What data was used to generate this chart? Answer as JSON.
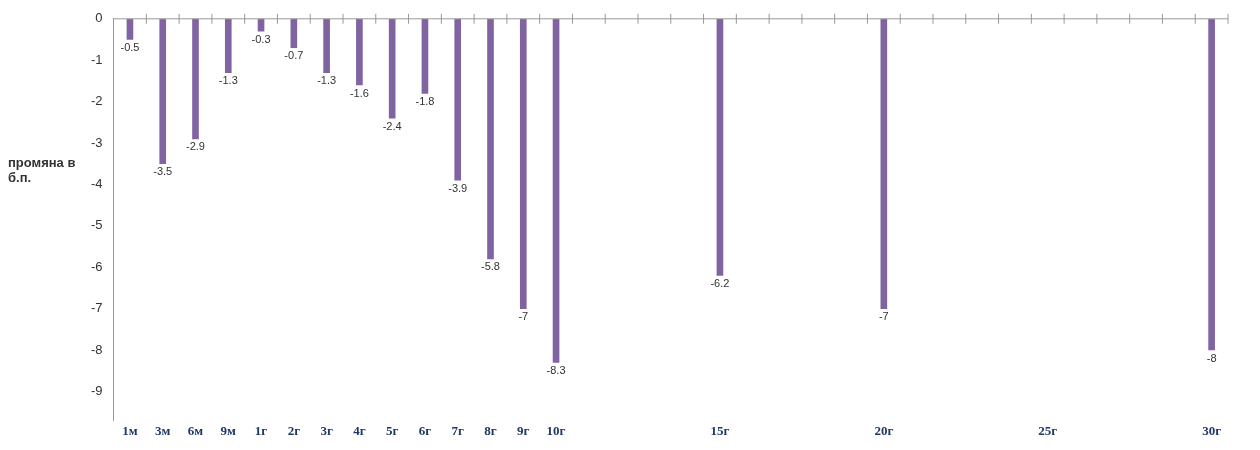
{
  "chart_data": {
    "type": "bar",
    "ylabel": "промяна в б.п.",
    "categories": [
      "1м",
      "3м",
      "6м",
      "9м",
      "1г",
      "2г",
      "3г",
      "4г",
      "5г",
      "6г",
      "7г",
      "8г",
      "9г",
      "10г",
      null,
      null,
      null,
      null,
      "15г",
      null,
      null,
      null,
      null,
      "20г",
      null,
      null,
      null,
      null,
      "25г",
      null,
      null,
      null,
      null,
      "30г"
    ],
    "values": [
      -0.5,
      -3.5,
      -2.9,
      -1.3,
      -0.3,
      -0.7,
      -1.3,
      -1.6,
      -2.4,
      -1.8,
      -3.9,
      -5.8,
      -7,
      -8.3,
      null,
      null,
      null,
      null,
      -6.2,
      null,
      null,
      null,
      null,
      -7,
      null,
      null,
      null,
      null,
      null,
      null,
      null,
      null,
      null,
      -8
    ],
    "color": "#8064a2",
    "ylim": [
      -9.7,
      0
    ],
    "yticks": [
      0,
      -1,
      -2,
      -3,
      -4,
      -5,
      -6,
      -7,
      -8,
      -9
    ],
    "grid": false,
    "legend": false,
    "data_labels": true
  }
}
